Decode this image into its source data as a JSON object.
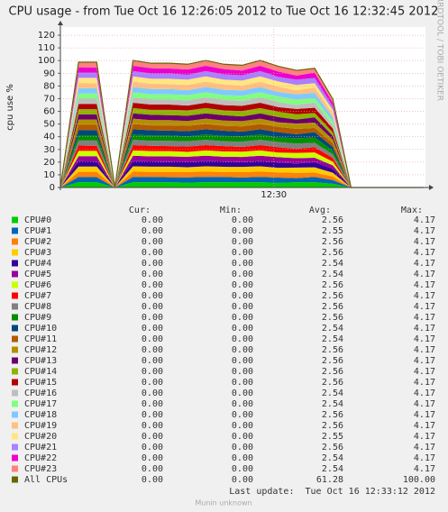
{
  "chart_data": {
    "type": "area",
    "stacked": true,
    "grid": true,
    "title": "CPU usage - from Tue Oct 16 12:26:05 2012 to Tue Oct 16 12:32:45 2012",
    "y_label": "cpu use %",
    "side_text": "RRDTOOL / TOBI OETIKER",
    "x": [
      "12:26:05",
      "12:26:25",
      "12:26:45",
      "12:27:05",
      "12:27:25",
      "12:27:45",
      "12:28:05",
      "12:28:25",
      "12:28:45",
      "12:29:05",
      "12:29:25",
      "12:29:45",
      "12:30:05",
      "12:30:25",
      "12:30:45",
      "12:31:05",
      "12:31:25",
      "12:31:45",
      "12:32:05",
      "12:32:25",
      "12:32:45"
    ],
    "xlim": [
      "12:26:05",
      "12:32:45"
    ],
    "xticks": [
      "12:30"
    ],
    "ylim": [
      0,
      125
    ],
    "yticks": [
      0,
      10,
      20,
      30,
      40,
      50,
      60,
      70,
      80,
      90,
      100,
      110,
      120
    ],
    "stats_headers": [
      "Cur:",
      "Min:",
      "Avg:",
      "Max:"
    ],
    "series": [
      {
        "name": "CPU#0",
        "color": "#00cc00",
        "values": [
          0,
          4.17,
          4.17,
          0,
          4.17,
          4.17,
          4.17,
          3.8,
          4.17,
          4.17,
          4.17,
          4.17,
          3.6,
          4.17,
          4.17,
          2.9,
          0,
          0,
          0,
          0,
          0
        ],
        "stats": [
          "0.00",
          "0.00",
          "2.56",
          "4.17"
        ]
      },
      {
        "name": "CPU#1",
        "color": "#0066b3",
        "values": [
          0,
          4.17,
          4,
          0,
          4.17,
          4.17,
          3.9,
          4.17,
          4.17,
          4.17,
          3.7,
          4.17,
          4.17,
          3.2,
          4.17,
          3,
          0,
          0,
          0,
          0,
          0
        ],
        "stats": [
          "0.00",
          "0.00",
          "2.55",
          "4.17"
        ]
      },
      {
        "name": "CPU#2",
        "color": "#ff8000",
        "values": [
          0,
          4,
          4.17,
          0,
          4.17,
          3.9,
          4.17,
          4.17,
          4.17,
          3.8,
          4.17,
          4.17,
          4.17,
          4.17,
          3.4,
          2.8,
          0,
          0,
          0,
          0,
          0
        ],
        "stats": [
          "0.00",
          "0.00",
          "2.56",
          "4.17"
        ]
      },
      {
        "name": "CPU#3",
        "color": "#ffcc00",
        "values": [
          0,
          4.17,
          4.17,
          0,
          4.17,
          4.17,
          4.17,
          3.8,
          4.17,
          4.17,
          4.17,
          4.17,
          3.6,
          4.17,
          4.17,
          2.9,
          0,
          0,
          0,
          0,
          0
        ],
        "stats": [
          "0.00",
          "0.00",
          "2.56",
          "4.17"
        ]
      },
      {
        "name": "CPU#4",
        "color": "#330099",
        "values": [
          0,
          4.17,
          4,
          0,
          4.17,
          4.17,
          3.9,
          4.17,
          4.17,
          4.17,
          3.7,
          4.17,
          4.17,
          3.2,
          4.17,
          3,
          0,
          0,
          0,
          0,
          0
        ],
        "stats": [
          "0.00",
          "0.00",
          "2.54",
          "4.17"
        ]
      },
      {
        "name": "CPU#5",
        "color": "#990099",
        "values": [
          0,
          4,
          4.17,
          0,
          4.17,
          3.9,
          4.17,
          4.17,
          4.17,
          3.8,
          4.17,
          4.17,
          4.17,
          4.17,
          3.4,
          2.8,
          0,
          0,
          0,
          0,
          0
        ],
        "stats": [
          "0.00",
          "0.00",
          "2.54",
          "4.17"
        ]
      },
      {
        "name": "CPU#6",
        "color": "#ccff00",
        "values": [
          0,
          4.17,
          4.17,
          0,
          4.17,
          4.17,
          4.17,
          3.8,
          4.17,
          4.17,
          4.17,
          4.17,
          3.6,
          4.17,
          4.17,
          2.9,
          0,
          0,
          0,
          0,
          0
        ],
        "stats": [
          "0.00",
          "0.00",
          "2.56",
          "4.17"
        ]
      },
      {
        "name": "CPU#7",
        "color": "#ff0000",
        "values": [
          0,
          4.17,
          4,
          0,
          4.17,
          4.17,
          3.9,
          4.17,
          4.17,
          4.17,
          3.7,
          4.17,
          4.17,
          3.2,
          4.17,
          3,
          0,
          0,
          0,
          0,
          0
        ],
        "stats": [
          "0.00",
          "0.00",
          "2.56",
          "4.17"
        ]
      },
      {
        "name": "CPU#8",
        "color": "#808080",
        "values": [
          0,
          4,
          4.17,
          0,
          4.17,
          3.9,
          4.17,
          4.17,
          4.17,
          3.8,
          4.17,
          4.17,
          4.17,
          4.17,
          3.4,
          2.8,
          0,
          0,
          0,
          0,
          0
        ],
        "stats": [
          "0.00",
          "0.00",
          "2.56",
          "4.17"
        ]
      },
      {
        "name": "CPU#9",
        "color": "#008f00",
        "values": [
          0,
          4.17,
          4.17,
          0,
          4.17,
          4.17,
          4.17,
          3.8,
          4.17,
          4.17,
          4.17,
          4.17,
          3.6,
          4.17,
          4.17,
          2.9,
          0,
          0,
          0,
          0,
          0
        ],
        "stats": [
          "0.00",
          "0.00",
          "2.56",
          "4.17"
        ]
      },
      {
        "name": "CPU#10",
        "color": "#00487d",
        "values": [
          0,
          4.17,
          4,
          0,
          4.17,
          4.17,
          3.9,
          4.17,
          4.17,
          4.17,
          3.7,
          4.17,
          4.17,
          3.2,
          4.17,
          3,
          0,
          0,
          0,
          0,
          0
        ],
        "stats": [
          "0.00",
          "0.00",
          "2.54",
          "4.17"
        ]
      },
      {
        "name": "CPU#11",
        "color": "#b35a00",
        "values": [
          0,
          4,
          4.17,
          0,
          4.17,
          3.9,
          4.17,
          4.17,
          4.17,
          3.8,
          4.17,
          4.17,
          4.17,
          4.17,
          3.4,
          2.8,
          0,
          0,
          0,
          0,
          0
        ],
        "stats": [
          "0.00",
          "0.00",
          "2.54",
          "4.17"
        ]
      },
      {
        "name": "CPU#12",
        "color": "#b38f00",
        "values": [
          0,
          4.17,
          4.17,
          0,
          4.17,
          4.17,
          4.17,
          3.8,
          4.17,
          4.17,
          4.17,
          4.17,
          3.6,
          4.17,
          4.17,
          2.9,
          0,
          0,
          0,
          0,
          0
        ],
        "stats": [
          "0.00",
          "0.00",
          "2.56",
          "4.17"
        ]
      },
      {
        "name": "CPU#13",
        "color": "#6b006b",
        "values": [
          0,
          4.17,
          4,
          0,
          4.17,
          4.17,
          3.9,
          4.17,
          4.17,
          4.17,
          3.7,
          4.17,
          4.17,
          3.2,
          4.17,
          3,
          0,
          0,
          0,
          0,
          0
        ],
        "stats": [
          "0.00",
          "0.00",
          "2.56",
          "4.17"
        ]
      },
      {
        "name": "CPU#14",
        "color": "#8fb300",
        "values": [
          0,
          4,
          4.17,
          0,
          4.17,
          3.9,
          4.17,
          4.17,
          4.17,
          3.8,
          4.17,
          4.17,
          4.17,
          4.17,
          3.4,
          2.8,
          0,
          0,
          0,
          0,
          0
        ],
        "stats": [
          "0.00",
          "0.00",
          "2.56",
          "4.17"
        ]
      },
      {
        "name": "CPU#15",
        "color": "#b30000",
        "values": [
          0,
          4.17,
          4.17,
          0,
          4.17,
          4.17,
          4.17,
          3.8,
          4.17,
          4.17,
          4.17,
          4.17,
          3.6,
          4.17,
          4.17,
          2.9,
          0,
          0,
          0,
          0,
          0
        ],
        "stats": [
          "0.00",
          "0.00",
          "2.56",
          "4.17"
        ]
      },
      {
        "name": "CPU#16",
        "color": "#bebebe",
        "values": [
          0,
          4.17,
          4,
          0,
          4.17,
          4.17,
          3.9,
          4.17,
          4.17,
          4.17,
          3.7,
          4.17,
          4.17,
          3.2,
          4.17,
          3,
          0,
          0,
          0,
          0,
          0
        ],
        "stats": [
          "0.00",
          "0.00",
          "2.54",
          "4.17"
        ]
      },
      {
        "name": "CPU#17",
        "color": "#80ff80",
        "values": [
          0,
          4,
          4.17,
          0,
          4.17,
          3.9,
          4.17,
          4.17,
          4.17,
          3.8,
          4.17,
          4.17,
          4.17,
          4.17,
          3.4,
          2.8,
          0,
          0,
          0,
          0,
          0
        ],
        "stats": [
          "0.00",
          "0.00",
          "2.54",
          "4.17"
        ]
      },
      {
        "name": "CPU#18",
        "color": "#80c9ff",
        "values": [
          0,
          4.17,
          4.17,
          0,
          4.17,
          4.17,
          4.17,
          3.8,
          4.17,
          4.17,
          4.17,
          4.17,
          3.6,
          4.17,
          4.17,
          2.9,
          0,
          0,
          0,
          0,
          0
        ],
        "stats": [
          "0.00",
          "0.00",
          "2.56",
          "4.17"
        ]
      },
      {
        "name": "CPU#19",
        "color": "#ffc080",
        "values": [
          0,
          4.17,
          4,
          0,
          4.17,
          4.17,
          3.9,
          4.17,
          4.17,
          4.17,
          3.7,
          4.17,
          4.17,
          3.2,
          4.17,
          3,
          0,
          0,
          0,
          0,
          0
        ],
        "stats": [
          "0.00",
          "0.00",
          "2.56",
          "4.17"
        ]
      },
      {
        "name": "CPU#20",
        "color": "#ffe680",
        "values": [
          0,
          4,
          4.17,
          0,
          4.17,
          3.9,
          4.17,
          4.17,
          4.17,
          3.8,
          4.17,
          4.17,
          4.17,
          4.17,
          3.4,
          2.8,
          0,
          0,
          0,
          0,
          0
        ],
        "stats": [
          "0.00",
          "0.00",
          "2.55",
          "4.17"
        ]
      },
      {
        "name": "CPU#21",
        "color": "#aa80ff",
        "values": [
          0,
          4.17,
          4.17,
          0,
          4.17,
          4.17,
          4.17,
          3.8,
          4.17,
          4.17,
          4.17,
          4.17,
          3.6,
          4.17,
          4.17,
          2.9,
          0,
          0,
          0,
          0,
          0
        ],
        "stats": [
          "0.00",
          "0.00",
          "2.56",
          "4.17"
        ]
      },
      {
        "name": "CPU#22",
        "color": "#ee00cc",
        "values": [
          0,
          4.17,
          4,
          0,
          4.17,
          4.17,
          3.9,
          4.17,
          4.17,
          4.17,
          3.7,
          4.17,
          4.17,
          3.2,
          4.17,
          3,
          0,
          0,
          0,
          0,
          0
        ],
        "stats": [
          "0.00",
          "0.00",
          "2.54",
          "4.17"
        ]
      },
      {
        "name": "CPU#23",
        "color": "#ff8080",
        "values": [
          0,
          4,
          4.17,
          0,
          4.17,
          3.9,
          4.17,
          4.17,
          4.17,
          3.8,
          4.17,
          4.17,
          4.17,
          4.17,
          3.4,
          2.8,
          0,
          0,
          0,
          0,
          0
        ],
        "stats": [
          "0.00",
          "0.00",
          "2.54",
          "4.17"
        ]
      }
    ],
    "total": {
      "name": "All CPUs",
      "color": "#666600",
      "values": [
        0,
        98.7,
        98.7,
        0,
        100.1,
        97.9,
        97.9,
        97.1,
        100.1,
        97.1,
        96.3,
        100.1,
        95.5,
        92.3,
        93.9,
        69.6,
        0,
        0,
        0,
        0,
        0
      ],
      "stats": [
        "0.00",
        "0.00",
        "61.28",
        "100.00"
      ]
    },
    "last_update": "Last update:  Tue Oct 16 12:33:12 2012",
    "footer": "Munin unknown"
  }
}
